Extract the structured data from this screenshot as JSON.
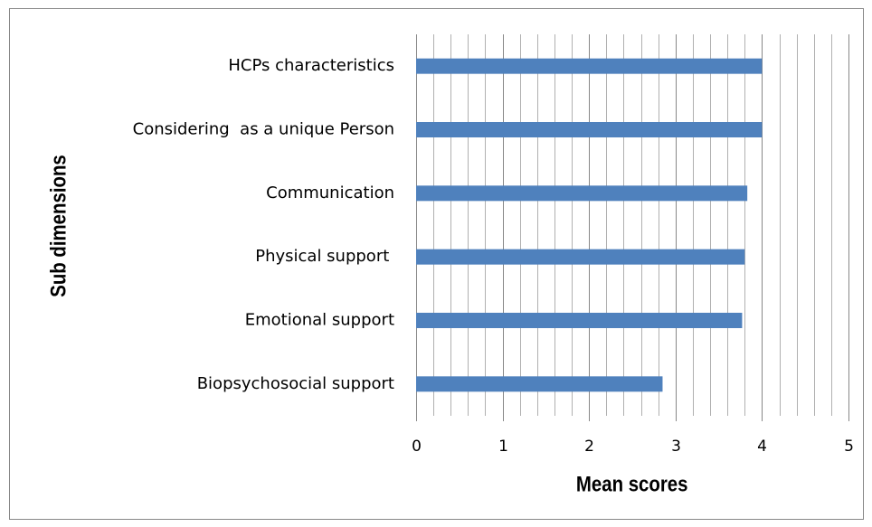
{
  "chart_data": {
    "type": "bar",
    "orientation": "horizontal",
    "categories": [
      "HCPs characteristics",
      "Considering  as a unique Person",
      "Communication",
      "Physical support ",
      "Emotional support",
      "Biopsychosocial support"
    ],
    "values": [
      4.0,
      4.0,
      3.83,
      3.8,
      3.77,
      2.85
    ],
    "color": "#4f81bd",
    "xlabel": "Mean scores",
    "ylabel": "Sub dimensions",
    "xlim": [
      0,
      5
    ],
    "xticks": [
      0,
      1,
      2,
      3,
      4,
      5
    ],
    "xminorticks": [
      0.2,
      0.4,
      0.6,
      0.8,
      1.2,
      1.4,
      1.6,
      1.8,
      2.2,
      2.4,
      2.6,
      2.8,
      3.2,
      3.4,
      3.6,
      3.8,
      4.2,
      4.4,
      4.6,
      4.8
    ],
    "grid": true
  }
}
